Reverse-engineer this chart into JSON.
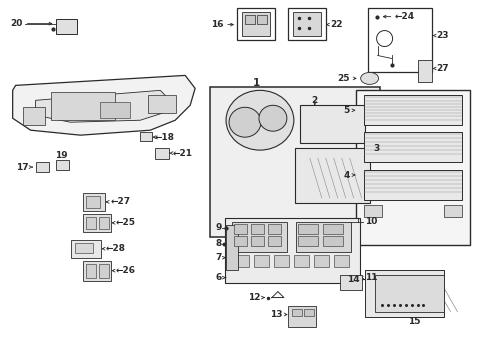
{
  "bg_color": "#ffffff",
  "lc": "#2a2a2a",
  "fs": 6.5,
  "fig_w": 4.89,
  "fig_h": 3.6,
  "dpi": 100
}
